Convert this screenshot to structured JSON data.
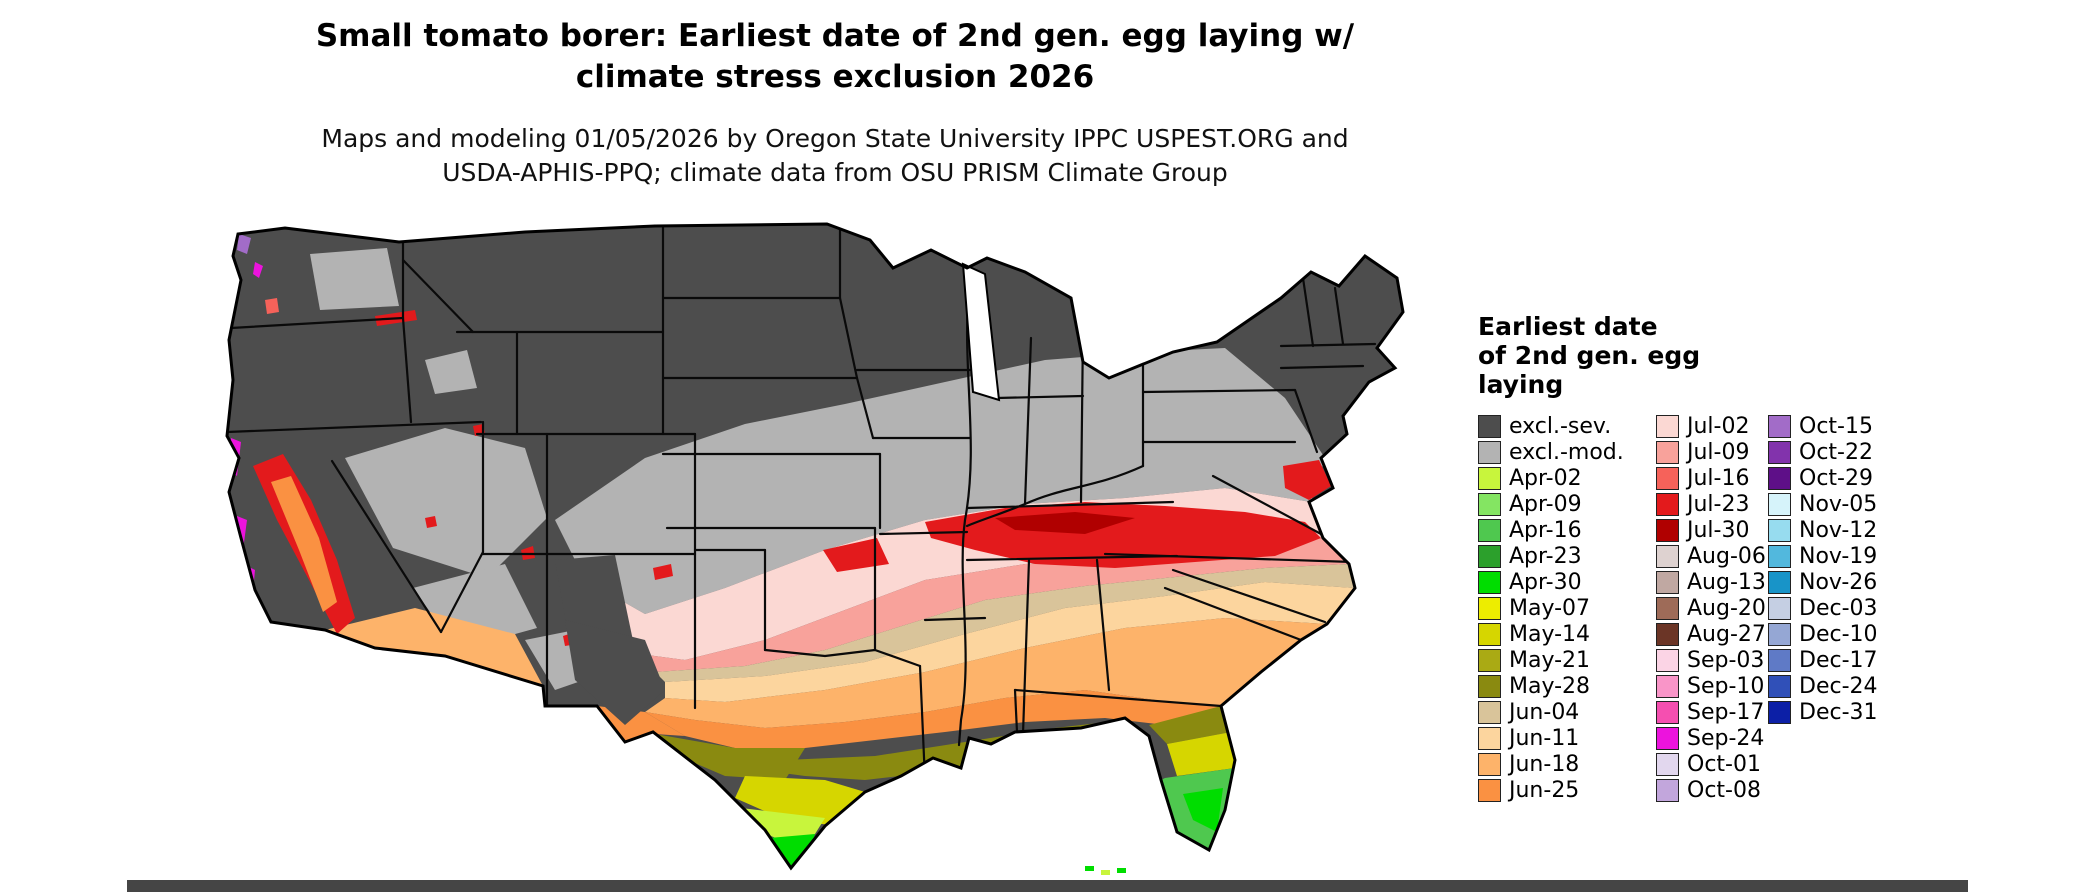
{
  "page": {
    "background": "#ffffff"
  },
  "title": {
    "line1": "Small tomato borer: Earliest date of 2nd gen. egg laying w/",
    "line2": "climate stress exclusion 2026"
  },
  "subtitle": {
    "line1": "Maps and modeling 01/05/2026 by Oregon State University IPPC USPEST.ORG and",
    "line2": "USDA-APHIS-PPQ; climate data from OSU PRISM Climate Group"
  },
  "colors": {
    "excl_sev": "#4d4d4d",
    "excl_mod": "#b3b3b3",
    "apr02": "#c8f53c",
    "apr09": "#84e562",
    "apr16": "#4fc84f",
    "apr23": "#2ca02c",
    "apr30": "#00dd00",
    "may07": "#eded00",
    "may14": "#d6d600",
    "may21": "#aaaa14",
    "may28": "#8a8a10",
    "jun04": "#d9c49a",
    "jun11": "#fcd59e",
    "jun18": "#fdb36a",
    "jun25": "#fa9142",
    "jul02": "#fbd8d3",
    "jul09": "#f8a29b",
    "jul16": "#f6625a",
    "jul23": "#e31a1c",
    "jul30": "#b00000",
    "aug06": "#ded2d0",
    "aug13": "#c0a8a2",
    "aug20": "#9e6b58",
    "aug27": "#6b3526",
    "sep03": "#fbd4e5",
    "sep10": "#f995c8",
    "sep17": "#f54fb0",
    "sep24": "#ec13dd",
    "oct01": "#e2d7ee",
    "oct08": "#c2a6dc",
    "oct15": "#a26cc8",
    "oct22": "#8233ac",
    "oct29": "#5e0f88",
    "nov05": "#d6f3fa",
    "nov12": "#97dcef",
    "nov19": "#52b8dd",
    "nov26": "#1894c8",
    "dec03": "#c5cfe3",
    "dec10": "#95a7d4",
    "dec17": "#5f7ac6",
    "dec24": "#3050b8",
    "dec31": "#0c1fa6",
    "map_border": "#000000",
    "bottom_strip": "#454545"
  },
  "legend": {
    "title_lines": [
      "Earliest date",
      "of 2nd gen. egg",
      "laying"
    ],
    "columns": [
      {
        "entries": [
          {
            "label": "excl.-sev.",
            "color": "excl_sev"
          },
          {
            "label": "excl.-mod.",
            "color": "excl_mod"
          },
          {
            "label": "Apr-02",
            "color": "apr02"
          },
          {
            "label": "Apr-09",
            "color": "apr09"
          },
          {
            "label": "Apr-16",
            "color": "apr16"
          },
          {
            "label": "Apr-23",
            "color": "apr23"
          },
          {
            "label": "Apr-30",
            "color": "apr30"
          },
          {
            "label": "May-07",
            "color": "may07"
          },
          {
            "label": "May-14",
            "color": "may14"
          },
          {
            "label": "May-21",
            "color": "may21"
          },
          {
            "label": "May-28",
            "color": "may28"
          },
          {
            "label": "Jun-04",
            "color": "jun04"
          },
          {
            "label": "Jun-11",
            "color": "jun11"
          },
          {
            "label": "Jun-18",
            "color": "jun18"
          },
          {
            "label": "Jun-25",
            "color": "jun25"
          }
        ]
      },
      {
        "entries": [
          {
            "label": "Jul-02",
            "color": "jul02"
          },
          {
            "label": "Jul-09",
            "color": "jul09"
          },
          {
            "label": "Jul-16",
            "color": "jul16"
          },
          {
            "label": "Jul-23",
            "color": "jul23"
          },
          {
            "label": "Jul-30",
            "color": "jul30"
          },
          {
            "label": "Aug-06",
            "color": "aug06"
          },
          {
            "label": "Aug-13",
            "color": "aug13"
          },
          {
            "label": "Aug-20",
            "color": "aug20"
          },
          {
            "label": "Aug-27",
            "color": "aug27"
          },
          {
            "label": "Sep-03",
            "color": "sep03"
          },
          {
            "label": "Sep-10",
            "color": "sep10"
          },
          {
            "label": "Sep-17",
            "color": "sep17"
          },
          {
            "label": "Sep-24",
            "color": "sep24"
          },
          {
            "label": "Oct-01",
            "color": "oct01"
          },
          {
            "label": "Oct-08",
            "color": "oct08"
          }
        ]
      },
      {
        "entries": [
          {
            "label": "Oct-15",
            "color": "oct15"
          },
          {
            "label": "Oct-22",
            "color": "oct22"
          },
          {
            "label": "Oct-29",
            "color": "oct29"
          },
          {
            "label": "Nov-05",
            "color": "nov05"
          },
          {
            "label": "Nov-12",
            "color": "nov12"
          },
          {
            "label": "Nov-19",
            "color": "nov19"
          },
          {
            "label": "Nov-26",
            "color": "nov26"
          },
          {
            "label": "Dec-03",
            "color": "dec03"
          },
          {
            "label": "Dec-10",
            "color": "dec10"
          },
          {
            "label": "Dec-17",
            "color": "dec17"
          },
          {
            "label": "Dec-24",
            "color": "dec24"
          },
          {
            "label": "Dec-31",
            "color": "dec31"
          }
        ]
      }
    ]
  }
}
